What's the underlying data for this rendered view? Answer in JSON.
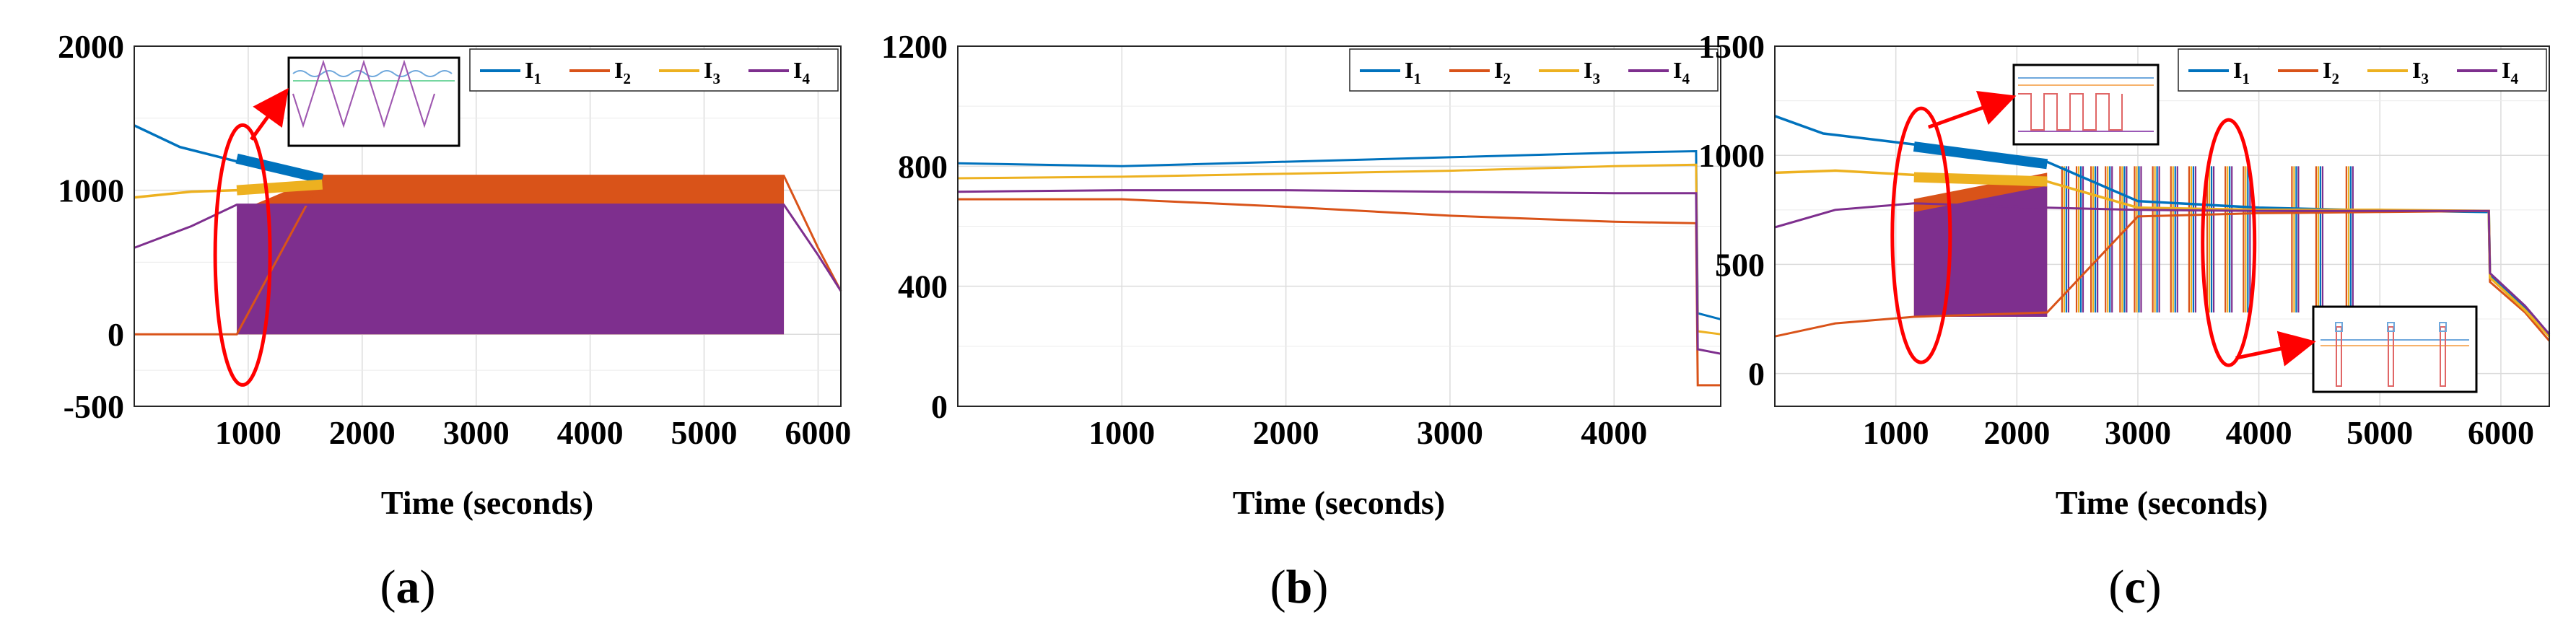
{
  "figure": {
    "xlabel": "Time (seconds)"
  },
  "colors": {
    "I1": "#0072bd",
    "I2": "#d95319",
    "I3": "#edb120",
    "I4": "#7e2f8e",
    "highlight": "#ff0000"
  },
  "chart_data": [
    {
      "type": "line",
      "panel": "(a)",
      "panel_parts": {
        "open": "(",
        "letter": "a",
        "close": ")"
      },
      "title": "",
      "xlabel": "Time (seconds)",
      "ylabel": "",
      "xlim": [
        0,
        6200
      ],
      "ylim": [
        -500,
        2000
      ],
      "xticks": [
        "1000",
        "2000",
        "3000",
        "4000",
        "5000",
        "6000"
      ],
      "yticks": [
        "-500",
        "0",
        "1000",
        "2000"
      ],
      "grid": true,
      "legend": [
        "I1",
        "I2",
        "I3",
        "I4"
      ],
      "legend_display": [
        {
          "base": "I",
          "sub": "1"
        },
        {
          "base": "I",
          "sub": "2"
        },
        {
          "base": "I",
          "sub": "3"
        },
        {
          "base": "I",
          "sub": "4"
        }
      ],
      "series": [
        {
          "name": "I1",
          "x": [
            0,
            400,
            900,
            1550,
            1650
          ],
          "y": [
            1450,
            1300,
            1200,
            1100,
            1080
          ]
        },
        {
          "name": "I2",
          "x": [
            0,
            900,
            1650,
            5700,
            6000,
            6200
          ],
          "y": [
            0,
            0,
            1100,
            1100,
            600,
            300
          ]
        },
        {
          "name": "I3",
          "x": [
            0,
            500,
            900,
            1500,
            1650
          ],
          "y": [
            950,
            990,
            1000,
            1020,
            1030
          ]
        },
        {
          "name": "I4",
          "x": [
            0,
            500,
            900,
            5700,
            6000,
            6200
          ],
          "y": [
            600,
            750,
            900,
            900,
            550,
            300
          ]
        }
      ],
      "fill_bands": [
        {
          "series": "I2",
          "x_from": 900,
          "x_to": 5700,
          "y_low": 0,
          "y_high": 1100
        },
        {
          "series": "I4",
          "x_from": 900,
          "x_to": 5700,
          "y_low": 0,
          "y_high": 900
        }
      ],
      "annotations": [
        {
          "type": "ellipse",
          "x": 900,
          "y": 500
        },
        {
          "type": "inset",
          "content": "zoomed switching waveforms"
        }
      ]
    },
    {
      "type": "line",
      "panel": "(b)",
      "panel_parts": {
        "open": "(",
        "letter": "b",
        "close": ")"
      },
      "title": "",
      "xlabel": "Time (seconds)",
      "ylabel": "",
      "xlim": [
        0,
        4650
      ],
      "ylim": [
        0,
        1200
      ],
      "xticks": [
        "1000",
        "2000",
        "3000",
        "4000"
      ],
      "yticks": [
        "0",
        "400",
        "800",
        "1200"
      ],
      "grid": true,
      "legend": [
        "I1",
        "I2",
        "I3",
        "I4"
      ],
      "legend_display": [
        {
          "base": "I",
          "sub": "1"
        },
        {
          "base": "I",
          "sub": "2"
        },
        {
          "base": "I",
          "sub": "3"
        },
        {
          "base": "I",
          "sub": "4"
        }
      ],
      "series": [
        {
          "name": "I1",
          "x": [
            0,
            1000,
            2000,
            3000,
            4000,
            4500,
            4510,
            4650
          ],
          "y": [
            810,
            800,
            815,
            830,
            845,
            850,
            310,
            290
          ]
        },
        {
          "name": "I2",
          "x": [
            0,
            1000,
            2000,
            3000,
            4000,
            4500,
            4510,
            4650
          ],
          "y": [
            690,
            690,
            665,
            635,
            615,
            610,
            70,
            70
          ]
        },
        {
          "name": "I3",
          "x": [
            0,
            1000,
            2000,
            3000,
            4000,
            4500,
            4510,
            4650
          ],
          "y": [
            760,
            765,
            775,
            785,
            800,
            805,
            250,
            240
          ]
        },
        {
          "name": "I4",
          "x": [
            0,
            1000,
            2000,
            3000,
            4000,
            4500,
            4510,
            4650
          ],
          "y": [
            715,
            720,
            720,
            715,
            710,
            710,
            190,
            175
          ]
        }
      ]
    },
    {
      "type": "line",
      "panel": "(c)",
      "panel_parts": {
        "open": "(",
        "letter": "c",
        "close": ")"
      },
      "title": "",
      "xlabel": "Time (seconds)",
      "ylabel": "",
      "xlim": [
        0,
        6400
      ],
      "ylim": [
        -150,
        1500
      ],
      "xticks": [
        "1000",
        "2000",
        "3000",
        "4000",
        "5000",
        "6000"
      ],
      "yticks": [
        "0",
        "500",
        "1000",
        "1500"
      ],
      "grid": true,
      "legend": [
        "I1",
        "I2",
        "I3",
        "I4"
      ],
      "legend_display": [
        {
          "base": "I",
          "sub": "1"
        },
        {
          "base": "I",
          "sub": "2"
        },
        {
          "base": "I",
          "sub": "3"
        },
        {
          "base": "I",
          "sub": "4"
        }
      ],
      "series": [
        {
          "name": "I1",
          "x": [
            0,
            400,
            1150,
            2250,
            3000,
            4000,
            4750,
            5900,
            5910,
            6200,
            6400
          ],
          "y": [
            1180,
            1100,
            1050,
            970,
            790,
            760,
            750,
            740,
            450,
            300,
            180
          ]
        },
        {
          "name": "I2",
          "x": [
            0,
            500,
            1150,
            2250,
            3000,
            4000,
            5000,
            5900,
            5910,
            6200,
            6400
          ],
          "y": [
            170,
            230,
            260,
            280,
            720,
            735,
            740,
            745,
            420,
            280,
            150
          ]
        },
        {
          "name": "I3",
          "x": [
            0,
            500,
            1150,
            2250,
            3000,
            4000,
            5000,
            5900,
            5910,
            6200,
            6400
          ],
          "y": [
            920,
            930,
            910,
            880,
            760,
            750,
            750,
            745,
            440,
            290,
            170
          ]
        },
        {
          "name": "I4",
          "x": [
            0,
            500,
            1150,
            2250,
            3000,
            4000,
            5000,
            5900,
            5910,
            6200,
            6400
          ],
          "y": [
            670,
            750,
            780,
            760,
            750,
            745,
            745,
            745,
            460,
            310,
            180
          ]
        }
      ],
      "fill_bands": [
        {
          "series": "I2",
          "x_from": 1150,
          "x_to": 2250,
          "y_low": 260,
          "y_high": 920
        },
        {
          "series": "I4",
          "x_from": 1150,
          "x_to": 2250,
          "y_low": 260,
          "y_high": 860
        }
      ],
      "spikes": [
        {
          "x": 2400,
          "y_low": 280,
          "y_high": 950
        },
        {
          "x": 2520,
          "y_low": 280,
          "y_high": 950
        },
        {
          "x": 2640,
          "y_low": 280,
          "y_high": 950
        },
        {
          "x": 2760,
          "y_low": 280,
          "y_high": 950
        },
        {
          "x": 2880,
          "y_low": 280,
          "y_high": 950
        },
        {
          "x": 3000,
          "y_low": 280,
          "y_high": 950
        },
        {
          "x": 3150,
          "y_low": 280,
          "y_high": 950
        },
        {
          "x": 3300,
          "y_low": 280,
          "y_high": 950
        },
        {
          "x": 3450,
          "y_low": 280,
          "y_high": 950
        },
        {
          "x": 3600,
          "y_low": 280,
          "y_high": 950
        },
        {
          "x": 3750,
          "y_low": 280,
          "y_high": 950
        },
        {
          "x": 3900,
          "y_low": 280,
          "y_high": 950
        },
        {
          "x": 4300,
          "y_low": 280,
          "y_high": 950
        },
        {
          "x": 4500,
          "y_low": 280,
          "y_high": 950
        },
        {
          "x": 4750,
          "y_low": 280,
          "y_high": 950
        }
      ],
      "annotations": [
        {
          "type": "ellipse",
          "x": 1150,
          "y": 600
        },
        {
          "type": "ellipse",
          "x": 3750,
          "y": 600
        },
        {
          "type": "inset",
          "content": "zoomed switching waveforms"
        },
        {
          "type": "inset",
          "content": "zoomed spike waveforms"
        }
      ]
    }
  ]
}
